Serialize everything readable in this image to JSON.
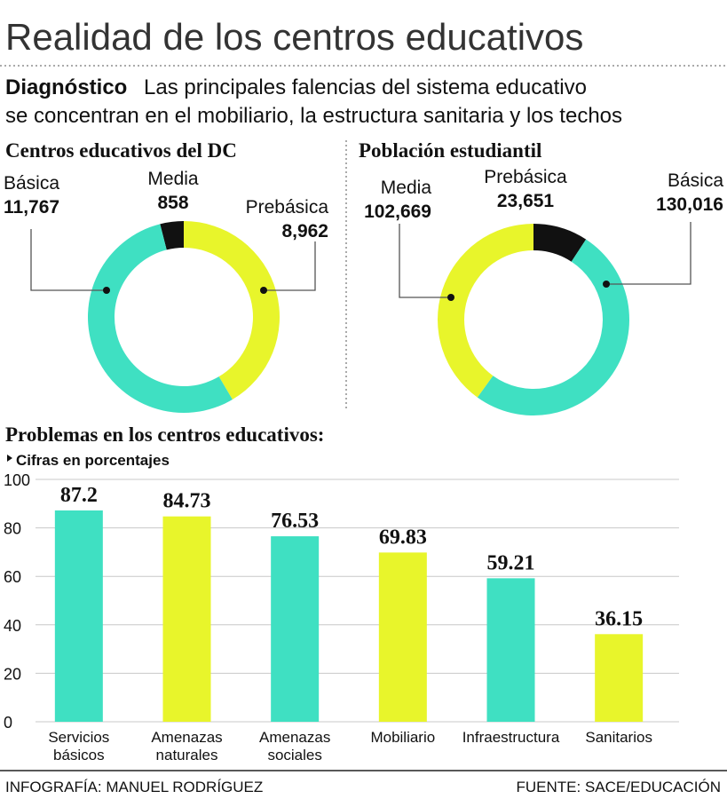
{
  "title": "Realidad de los centros educativos",
  "intro": {
    "lead": "Diagnóstico",
    "line1": "Las principales falencias del sistema educativo",
    "line2": "se concentran en el mobiliario, la estructura sanitaria y los techos"
  },
  "chart_data": [
    {
      "type": "donut",
      "title": "Centros educativos del DC",
      "categories": [
        "Media",
        "Prebásica",
        "Básica"
      ],
      "values": [
        858,
        8962,
        11767
      ],
      "value_labels": [
        "858",
        "8,962",
        "11,767"
      ],
      "colors": [
        "#111111",
        "#e8f52b",
        "#3fe0c2"
      ]
    },
    {
      "type": "donut",
      "title": "Población estudiantil",
      "categories": [
        "Prebásica",
        "Básica",
        "Media"
      ],
      "values": [
        23651,
        130016,
        102669
      ],
      "value_labels": [
        "23,651",
        "130,016",
        "102,669"
      ],
      "colors": [
        "#111111",
        "#3fe0c2",
        "#e8f52b"
      ]
    },
    {
      "type": "bar",
      "title": "Problemas en los centros educativos:",
      "subtitle": "Cifras en porcentajes",
      "categories": [
        "Servicios básicos",
        "Amenazas naturales",
        "Amenazas sociales",
        "Mobiliario",
        "Infraestructura",
        "Sanitarios"
      ],
      "values": [
        87.2,
        84.73,
        76.53,
        69.83,
        59.21,
        36.15
      ],
      "colors": [
        "#3fe0c2",
        "#e8f52b",
        "#3fe0c2",
        "#e8f52b",
        "#3fe0c2",
        "#e8f52b"
      ],
      "ylim": [
        0,
        100
      ],
      "yticks": [
        0,
        20,
        40,
        60,
        80,
        100
      ],
      "grid": true
    }
  ],
  "credits": {
    "author": "INFOGRAFÍA: MANUEL RODRÍGUEZ",
    "source": "FUENTE: SACE/EDUCACIÓN"
  }
}
